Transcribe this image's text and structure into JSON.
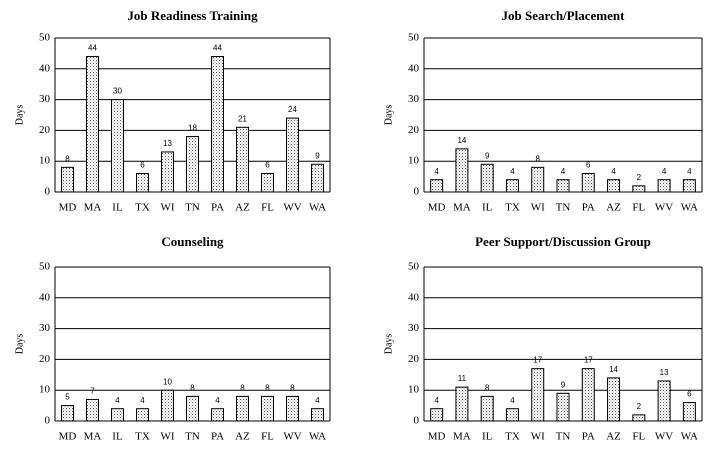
{
  "chart_data": [
    {
      "type": "bar",
      "title": "Job Readiness Training",
      "y_label": "Days",
      "categories": [
        "MD",
        "MA",
        "IL",
        "TX",
        "WI",
        "TN",
        "PA",
        "AZ",
        "FL",
        "WV",
        "WA"
      ],
      "values": [
        8,
        44,
        30,
        6,
        13,
        18,
        44,
        21,
        6,
        24,
        9
      ],
      "ylim": [
        0,
        50
      ],
      "yticks": [
        0,
        10,
        20,
        30,
        40,
        50
      ],
      "grid": true
    },
    {
      "type": "bar",
      "title": "Job Search/Placement",
      "y_label": "Days",
      "categories": [
        "MD",
        "MA",
        "IL",
        "TX",
        "WI",
        "TN",
        "PA",
        "AZ",
        "FL",
        "WV",
        "WA"
      ],
      "values": [
        4,
        14,
        9,
        4,
        8,
        4,
        6,
        4,
        2,
        4,
        4
      ],
      "ylim": [
        0,
        50
      ],
      "yticks": [
        0,
        10,
        20,
        30,
        40,
        50
      ],
      "grid": true
    },
    {
      "type": "bar",
      "title": "Counseling",
      "y_label": "Days",
      "categories": [
        "MD",
        "MA",
        "IL",
        "TX",
        "WI",
        "TN",
        "PA",
        "AZ",
        "FL",
        "WV",
        "WA"
      ],
      "values": [
        5,
        7,
        4,
        4,
        10,
        8,
        4,
        8,
        8,
        8,
        4
      ],
      "ylim": [
        0,
        50
      ],
      "yticks": [
        0,
        10,
        20,
        30,
        40,
        50
      ],
      "grid": true
    },
    {
      "type": "bar",
      "title": "Peer Support/Discussion Group",
      "y_label": "Days",
      "categories": [
        "MD",
        "MA",
        "IL",
        "TX",
        "WI",
        "TN",
        "PA",
        "AZ",
        "FL",
        "WV",
        "WA"
      ],
      "values": [
        4,
        11,
        8,
        4,
        17,
        9,
        17,
        14,
        2,
        13,
        6
      ],
      "ylim": [
        0,
        50
      ],
      "yticks": [
        0,
        10,
        20,
        30,
        40,
        50
      ],
      "grid": true
    }
  ]
}
